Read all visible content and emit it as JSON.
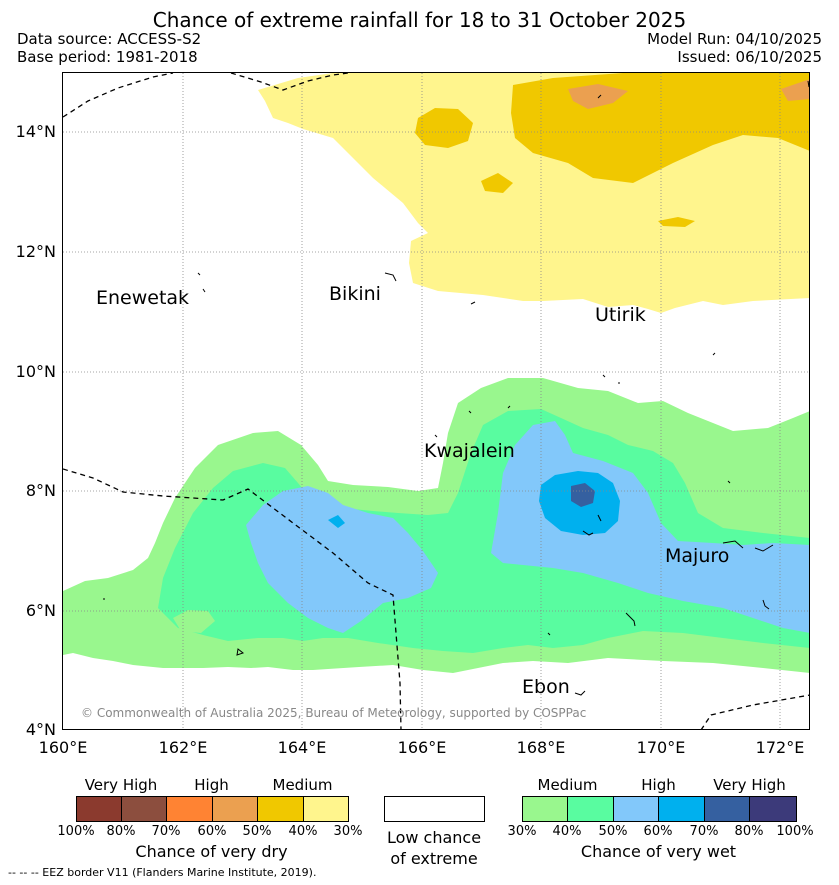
{
  "header": {
    "title": "Chance of extreme rainfall for 18 to 31 October 2025",
    "data_source": "Data source: ACCESS-S2",
    "base_period": "Base period: 1981-2018",
    "model_run": "Model Run: 04/10/2025",
    "issued": "Issued: 06/10/2025"
  },
  "map": {
    "lat_labels": [
      "14°N",
      "12°N",
      "10°N",
      "8°N",
      "6°N",
      "4°N"
    ],
    "lon_labels": [
      "160°E",
      "162°E",
      "164°E",
      "166°E",
      "168°E",
      "170°E",
      "172°E"
    ],
    "places": [
      "Enewetak",
      "Bikini",
      "Utirik",
      "Kwajalein",
      "Majuro",
      "Ebon"
    ],
    "copyright": "© Commonwealth of Australia 2025, Bureau of Meteorology, supported by COSPPac"
  },
  "colors": {
    "dry_100": "#8b3a2e",
    "dry_80": "#8c4e3e",
    "dry_70": "#ff8333",
    "dry_60": "#eba050",
    "dry_50": "#f0c800",
    "dry_40": "#fff58d",
    "wet_30": "#99f78e",
    "wet_40": "#59fca0",
    "wet_50": "#82c8fa",
    "wet_60": "#00b0ee",
    "wet_70": "#3560a0",
    "wet_80": "#3c3a7a",
    "eez_line": "#000000",
    "grid": "#888888"
  },
  "legend": {
    "dry": {
      "levels": [
        "Very High",
        "High",
        "Medium"
      ],
      "ticks": [
        "100%",
        "80%",
        "70%",
        "60%",
        "50%",
        "40%",
        "30%"
      ],
      "caption": "Chance of very dry"
    },
    "low": {
      "caption_line1": "Low chance",
      "caption_line2": "of extreme"
    },
    "wet": {
      "levels": [
        "Medium",
        "High",
        "Very High"
      ],
      "ticks": [
        "30%",
        "40%",
        "50%",
        "60%",
        "70%",
        "80%",
        "100%"
      ],
      "caption": "Chance of very wet"
    }
  },
  "footnote": "--  --  -- EEZ border V11 (Flanders Marine Institute, 2019)."
}
